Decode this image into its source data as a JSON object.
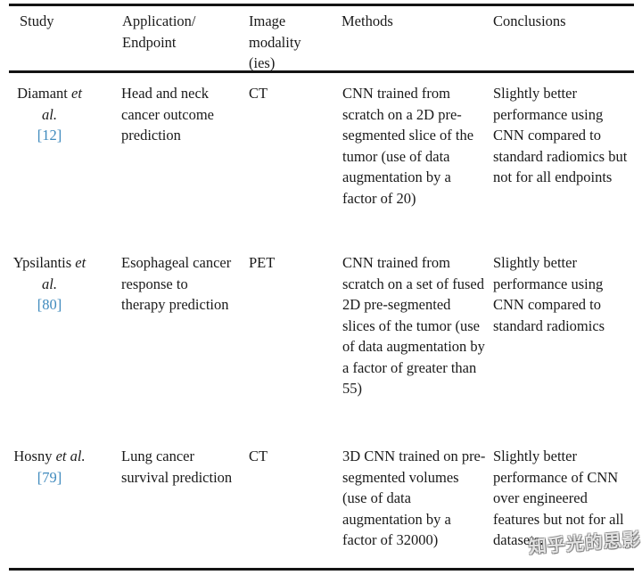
{
  "document": {
    "text_color": "#1a1a1a",
    "link_color": "#3f8abd",
    "rule_color": "#141414",
    "watermark_text": "知乎光的思影",
    "table": {
      "headers": {
        "study": "Study",
        "application": "Application/\nEndpoint",
        "modality": "Image\nmodality\n(ies)",
        "methods": "Methods",
        "conclusions": "Conclusions"
      },
      "rows": [
        {
          "study_name": "Diamant",
          "study_etal": "et al.",
          "study_ref": "[12]",
          "application": "Head and neck cancer outcome prediction",
          "modality": "CT",
          "methods": "CNN trained from scratch on a 2D pre-segmented slice of the tumor (use of data augmentation by a factor of 20)",
          "conclusions": "Slightly better performance using CNN compared to standard radiomics but not for all endpoints"
        },
        {
          "study_name": "Ypsilantis",
          "study_etal": "et al.",
          "study_ref": "[80]",
          "application": "Esophageal cancer response to therapy prediction",
          "modality": "PET",
          "methods": "CNN trained from scratch on a set of fused 2D pre-segmented slices of the tumor (use of data augmentation by a factor of greater than 55)",
          "conclusions": "Slightly better performance using CNN compared to standard radiomics"
        },
        {
          "study_name": "Hosny",
          "study_etal": "et al.",
          "study_ref": "[79]",
          "application": "Lung cancer survival prediction",
          "modality": "CT",
          "methods": "3D CNN trained on pre-segmented volumes (use of data augmentation by a factor of 32000)",
          "conclusions": "Slightly better performance of CNN over engineered features but not for all datasets."
        }
      ]
    }
  }
}
